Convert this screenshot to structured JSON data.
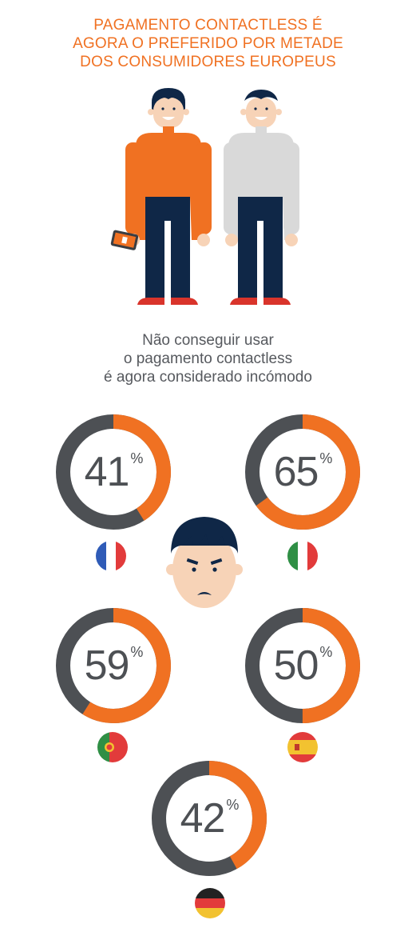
{
  "title_lines": [
    "PAGAMENTO CONTACTLESS É",
    "AGORA O PREFERIDO POR METADE",
    "DOS CONSUMIDORES EUROPEUS"
  ],
  "subtitle_lines": [
    "Não conseguir usar",
    "o pagamento contactless",
    "é agora considerado incómodo"
  ],
  "colors": {
    "accent": "#f07122",
    "dark": "#4d5054",
    "navy": "#0f2747",
    "grey": "#d9d9d9",
    "shoe": "#d9342b"
  },
  "stats": [
    {
      "value": "41",
      "unit": "%",
      "fraction": 0.41,
      "country": "France",
      "flag_icon": "france-flag-icon"
    },
    {
      "value": "65",
      "unit": "%",
      "fraction": 0.65,
      "country": "Italy",
      "flag_icon": "italy-flag-icon"
    },
    {
      "value": "59",
      "unit": "%",
      "fraction": 0.59,
      "country": "Portugal",
      "flag_icon": "portugal-flag-icon"
    },
    {
      "value": "50",
      "unit": "%",
      "fraction": 0.5,
      "country": "Spain",
      "flag_icon": "spain-flag-icon"
    },
    {
      "value": "42",
      "unit": "%",
      "fraction": 0.42,
      "country": "Germany",
      "flag_icon": "germany-flag-icon"
    }
  ]
}
